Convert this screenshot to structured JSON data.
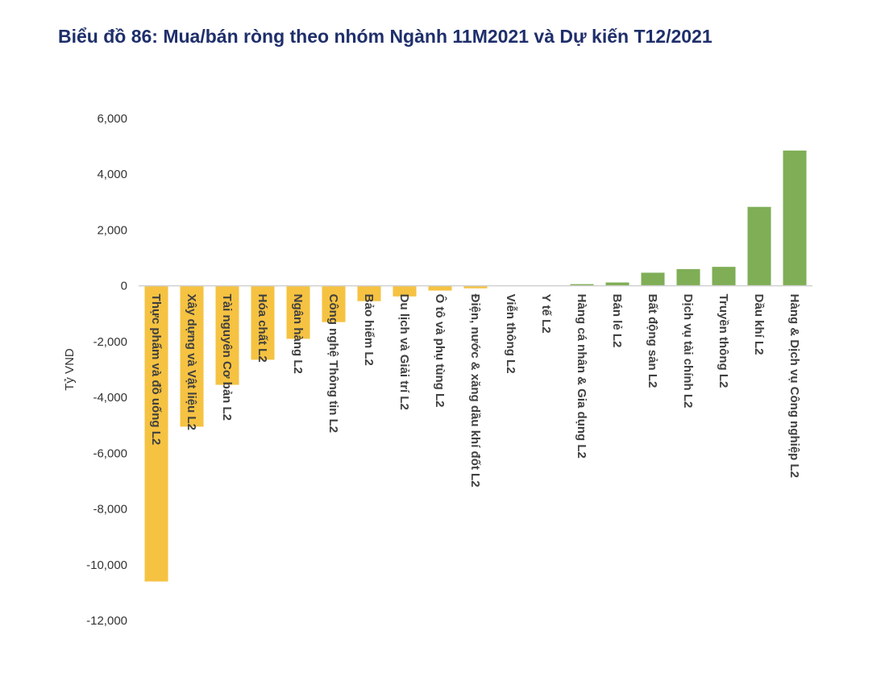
{
  "chart_data": {
    "type": "bar",
    "title": "Biểu đồ 86: Mua/bán ròng theo nhóm Ngành 11M2021 và Dự kiến T12/2021",
    "xlabel": "",
    "ylabel": "Tỷ VND",
    "ylim": [
      -12000,
      6000
    ],
    "yticks": [
      6000,
      4000,
      2000,
      0,
      -2000,
      -4000,
      -6000,
      -8000,
      -10000,
      -12000
    ],
    "ytick_labels": [
      "6,000",
      "4,000",
      "2,000",
      "0",
      "-2,000",
      "-4,000",
      "-6,000",
      "-8,000",
      "-10,000",
      "-12,000"
    ],
    "grid": false,
    "legend": "none",
    "colors": {
      "negative": "#f5c242",
      "positive": "#7fae56",
      "axis": "#d0d0d0"
    },
    "categories": [
      "Thực phẩm và đồ uống L2",
      "Xây dựng và Vật liệu L2",
      "Tài nguyên Cơ bản L2",
      "Hóa chất L2",
      "Ngân hàng L2",
      "Công nghệ Thông tin L2",
      "Bảo hiểm L2",
      "Du lịch và Giải trí L2",
      "Ô tô và phụ tùng L2",
      "Điện, nước & xăng dầu khí đốt L2",
      "Viễn thông L2",
      "Y tế L2",
      "Hàng cá nhân & Gia dụng L2",
      "Bán lẻ L2",
      "Bất động sản L2",
      "Dịch vụ tài chính L2",
      "Truyền thông L2",
      "Dầu khí L2",
      "Hàng & Dịch vụ Công nghiệp L2"
    ],
    "values": [
      -10600,
      -5050,
      -3550,
      -2650,
      -1900,
      -1300,
      -550,
      -380,
      -170,
      -90,
      0,
      0,
      60,
      120,
      470,
      600,
      680,
      2830,
      4850
    ]
  }
}
